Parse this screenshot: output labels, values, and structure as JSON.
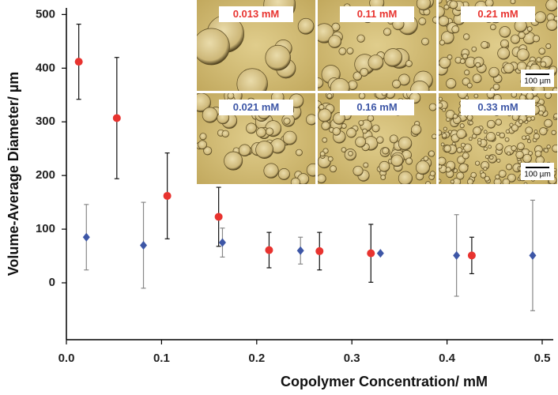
{
  "chart_data": {
    "type": "scatter",
    "x_label": "Copolymer Concentration/ mM",
    "y_label": "Volume-Average Diameter/ µm",
    "xlim": [
      0,
      0.5
    ],
    "xticks": [
      {
        "value": 0,
        "label": "0.0"
      },
      0.1,
      0.2,
      0.3,
      0.4,
      0.5
    ],
    "ylim": [
      -106,
      500
    ],
    "yticks": [
      0,
      100,
      200,
      300,
      400,
      500
    ],
    "series": [
      {
        "color": "#e8332f",
        "marker": "circle",
        "error_color": "#111111",
        "x": [
          0.013,
          0.053,
          0.106,
          0.16,
          0.213,
          0.266,
          0.32,
          0.426
        ],
        "values": [
          412,
          307,
          162,
          123,
          61,
          59,
          55,
          51
        ],
        "errors": [
          70,
          113,
          80,
          55,
          33,
          35,
          54,
          34
        ]
      },
      {
        "color": "#3d56a6",
        "marker": "diamond",
        "error_color": "#888888",
        "x": [
          0.021,
          0.081,
          0.164,
          0.246,
          0.33,
          0.41,
          0.49
        ],
        "values": [
          85,
          70,
          75,
          60,
          55,
          51,
          51
        ],
        "errors": [
          61,
          80,
          27,
          25,
          0,
          76,
          103
        ]
      }
    ]
  },
  "insets": [
    {
      "label": "0.013 mM",
      "color": "#e8332f"
    },
    {
      "label": "0.11 mM",
      "color": "#e8332f"
    },
    {
      "label": "0.21 mM",
      "color": "#e8332f"
    },
    {
      "label": "0.021 mM",
      "color": "#3d56a6"
    },
    {
      "label": "0.16 mM",
      "color": "#3d56a6"
    },
    {
      "label": "0.33 mM",
      "color": "#3d56a6"
    }
  ],
  "scale_bar": "100 µm"
}
